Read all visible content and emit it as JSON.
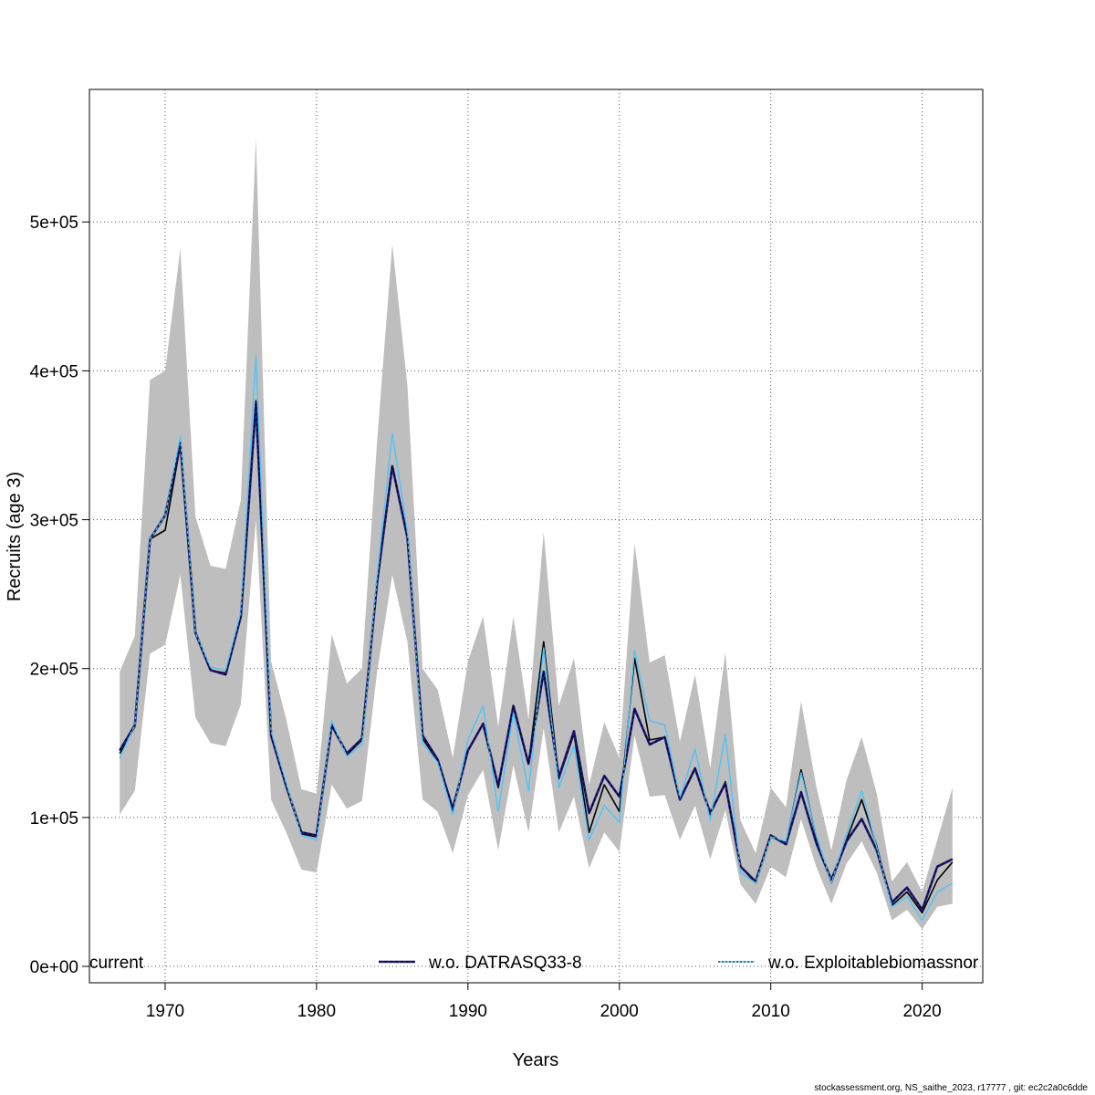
{
  "chart_data": {
    "type": "line",
    "xlabel": "Years",
    "ylabel": "Recruits (age 3)",
    "xlim": [
      1965,
      2024
    ],
    "ylim": [
      -11000,
      589000
    ],
    "x_ticks": [
      1970,
      1980,
      1990,
      2000,
      2010,
      2020
    ],
    "x_tick_labels": [
      "1970",
      "1980",
      "1990",
      "2000",
      "2010",
      "2020"
    ],
    "y_ticks": [
      0,
      100000,
      200000,
      300000,
      400000,
      500000
    ],
    "y_tick_labels": [
      "0e+00",
      "1e+05",
      "2e+05",
      "3e+05",
      "4e+05",
      "5e+05"
    ],
    "grid": true,
    "legend_position": "bottom",
    "x": [
      1967,
      1968,
      1969,
      1970,
      1971,
      1972,
      1973,
      1974,
      1975,
      1976,
      1977,
      1978,
      1979,
      1980,
      1981,
      1982,
      1983,
      1984,
      1985,
      1986,
      1987,
      1988,
      1989,
      1990,
      1991,
      1992,
      1993,
      1994,
      1995,
      1996,
      1997,
      1998,
      1999,
      2000,
      2001,
      2002,
      2003,
      2004,
      2005,
      2006,
      2007,
      2008,
      2009,
      2010,
      2011,
      2012,
      2013,
      2014,
      2015,
      2016,
      2017,
      2018,
      2019,
      2020,
      2021,
      2022
    ],
    "confidence_band": {
      "color": "#bebebe",
      "lower": [
        102000,
        118000,
        210000,
        216000,
        263000,
        167000,
        150000,
        148000,
        176000,
        300000,
        112000,
        90000,
        65000,
        63000,
        122000,
        106000,
        111000,
        198000,
        263000,
        218000,
        112000,
        104000,
        76000,
        115000,
        132000,
        78000,
        135000,
        90000,
        160000,
        90000,
        114000,
        66000,
        90000,
        77000,
        155000,
        114000,
        115000,
        85000,
        108000,
        72000,
        105000,
        55000,
        42000,
        67000,
        60000,
        99000,
        67000,
        42000,
        69000,
        84000,
        63000,
        31000,
        38000,
        25000,
        40000,
        42000
      ],
      "upper": [
        198000,
        222000,
        394000,
        400000,
        482000,
        302000,
        269000,
        267000,
        313000,
        556000,
        205000,
        166000,
        119000,
        116000,
        223000,
        190000,
        200000,
        353000,
        485000,
        390000,
        200000,
        186000,
        140000,
        205000,
        235000,
        161000,
        235000,
        166000,
        292000,
        175000,
        207000,
        122000,
        164000,
        140000,
        284000,
        204000,
        209000,
        151000,
        196000,
        133000,
        211000,
        98000,
        76000,
        120000,
        107000,
        178000,
        121000,
        78000,
        125000,
        154000,
        116000,
        57000,
        70000,
        50000,
        85000,
        120000
      ]
    },
    "series": [
      {
        "name": "current",
        "color": "#000000",
        "style": "solid",
        "values": [
          143000,
          161000,
          287000,
          293000,
          350000,
          225000,
          199000,
          197000,
          234000,
          380000,
          155000,
          121000,
          89000,
          87000,
          163000,
          142000,
          152000,
          258000,
          335000,
          290000,
          153000,
          138000,
          104000,
          145000,
          163000,
          120000,
          175000,
          136000,
          218000,
          126000,
          156000,
          90000,
          122000,
          104000,
          207000,
          152000,
          154000,
          112000,
          133000,
          102000,
          124000,
          67000,
          56000,
          87000,
          83000,
          132000,
          87000,
          56000,
          85000,
          112000,
          81000,
          41000,
          50000,
          36000,
          58000,
          70000
        ]
      },
      {
        "name": "w.o. DATRASQ33-8",
        "color": "#1f1a7a",
        "style": "solid",
        "values": [
          145000,
          162000,
          287000,
          303000,
          352000,
          224000,
          199000,
          196000,
          235000,
          378000,
          155000,
          121000,
          90000,
          88000,
          162000,
          143000,
          153000,
          258000,
          336000,
          288000,
          155000,
          139000,
          106000,
          145000,
          163000,
          121000,
          175000,
          136000,
          198000,
          127000,
          158000,
          103000,
          128000,
          114000,
          173000,
          149000,
          154000,
          112000,
          133000,
          103000,
          123000,
          67000,
          57000,
          88000,
          82000,
          117000,
          83000,
          58000,
          84000,
          99000,
          78000,
          43000,
          53000,
          38000,
          67000,
          72000
        ]
      },
      {
        "name": "w.o. Exploitablebiomassnor",
        "color": "#4fc3f7",
        "style": "solid",
        "values": [
          140000,
          162000,
          287000,
          303000,
          356000,
          224000,
          201000,
          199000,
          238000,
          410000,
          158000,
          123000,
          88000,
          85000,
          165000,
          141000,
          149000,
          262000,
          358000,
          292000,
          150000,
          137000,
          102000,
          152000,
          175000,
          104000,
          170000,
          118000,
          214000,
          120000,
          148000,
          85000,
          108000,
          97000,
          212000,
          165000,
          162000,
          113000,
          146000,
          98000,
          156000,
          63000,
          56000,
          87000,
          84000,
          130000,
          88000,
          56000,
          89000,
          118000,
          80000,
          40000,
          47000,
          31000,
          50000,
          56000
        ]
      }
    ],
    "legend": [
      "current",
      "w.o. DATRASQ33-8",
      "w.o. Exploitablebiomassnor"
    ]
  },
  "footer": "stockassessment.org, NS_saithe_2023, r17777 , git: ec2c2a0c6dde"
}
